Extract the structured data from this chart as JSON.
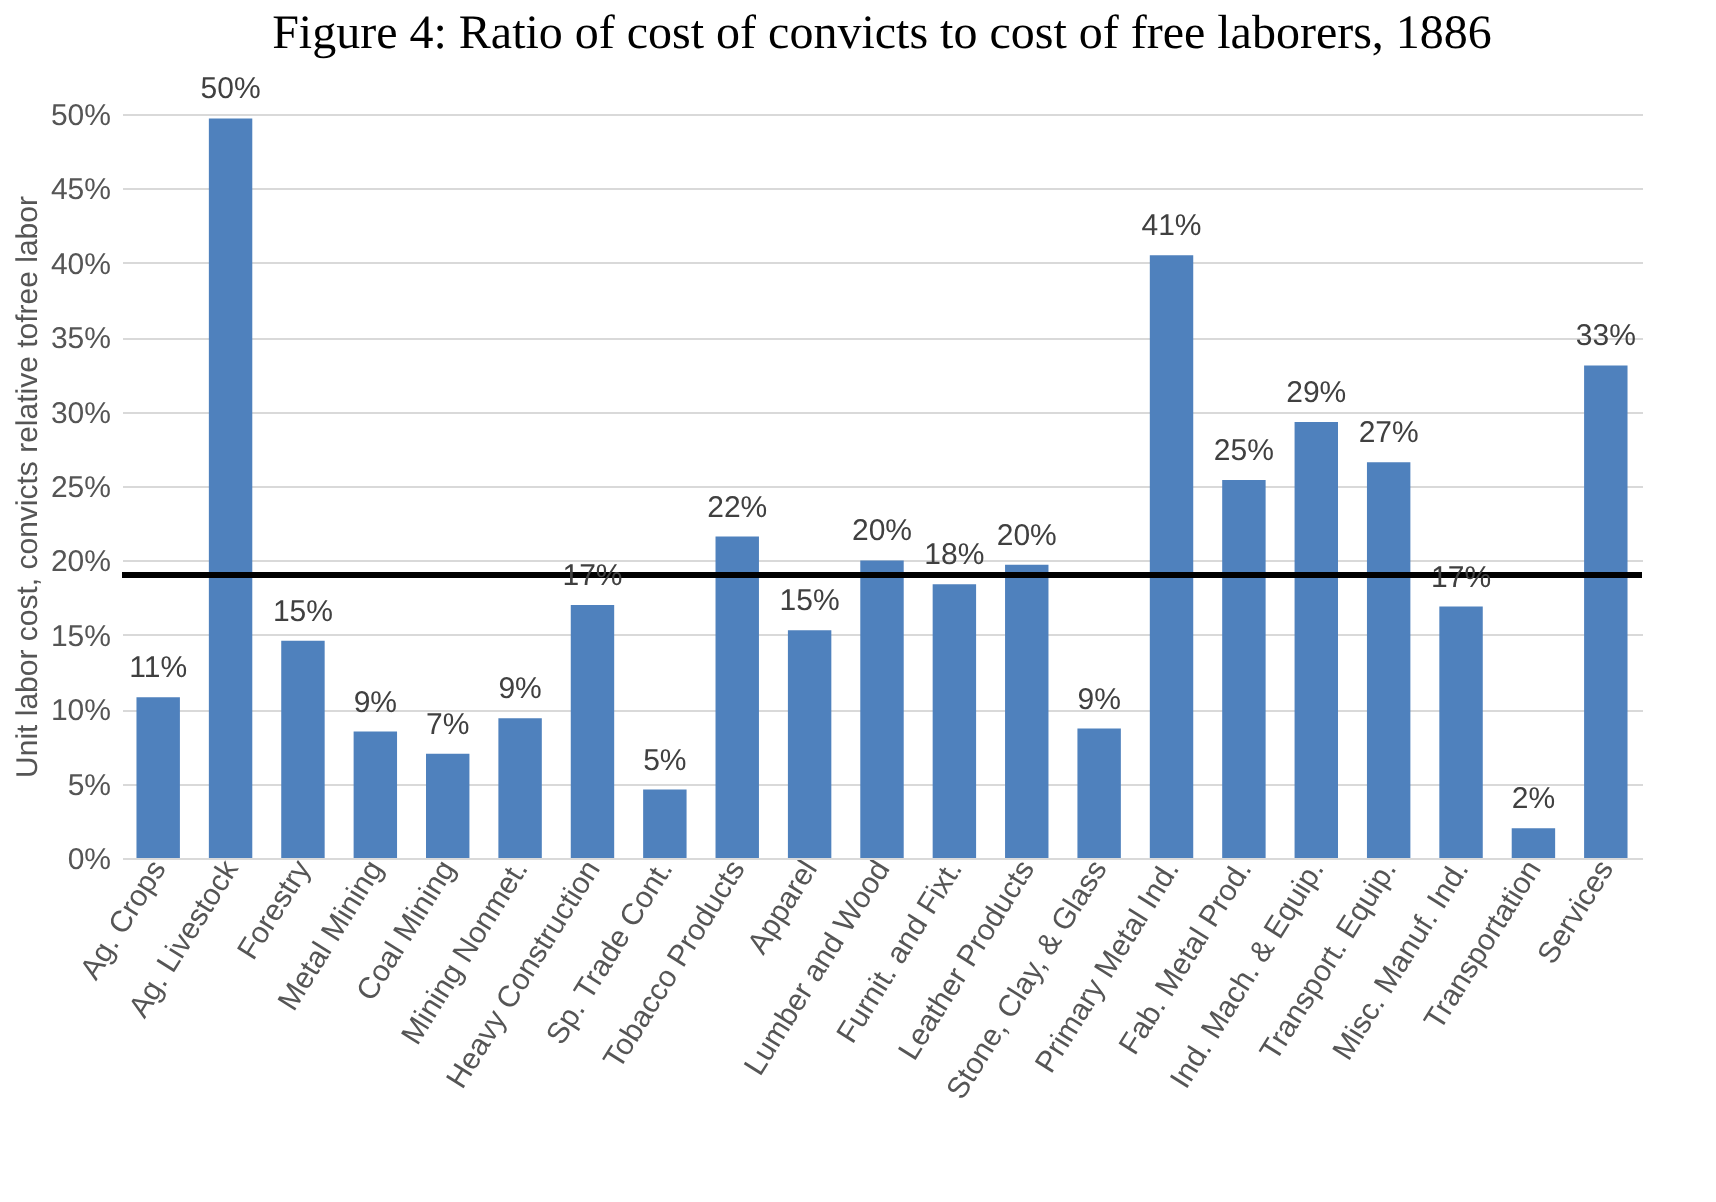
{
  "chart_data": {
    "type": "bar",
    "title": "Figure 4: Ratio of cost of convicts to cost of free laborers, 1886",
    "ylabel": "Unit labor cost, convicts relative tofree labor",
    "categories": [
      "Ag. Crops",
      "Ag. Livestock",
      "Forestry",
      "Metal Mining",
      "Coal Mining",
      "Mining Nonmet.",
      "Heavy Construction",
      "Sp. Trade Cont.",
      "Tobacco Products",
      "Apparel",
      "Lumber and Wood",
      "Furnit. and Fixt.",
      "Leather Products",
      "Stone, Clay, & Glass",
      "Primary Metal Ind.",
      "Fab. Metal Prod.",
      "Ind. Mach. & Equip.",
      "Transport. Equip.",
      "Misc. Manuf. Ind.",
      "Transportation",
      "Services"
    ],
    "values": [
      10.8,
      49.7,
      14.6,
      8.5,
      7.0,
      9.4,
      17.0,
      4.6,
      21.6,
      15.3,
      20.0,
      18.4,
      19.7,
      8.7,
      40.5,
      25.4,
      29.3,
      26.6,
      16.9,
      2.0,
      33.1
    ],
    "value_labels": [
      "11%",
      "50%",
      "15%",
      "9%",
      "7%",
      "9%",
      "17%",
      "5%",
      "22%",
      "15%",
      "20%",
      "18%",
      "20%",
      "9%",
      "41%",
      "25%",
      "29%",
      "27%",
      "17%",
      "2%",
      "33%"
    ],
    "color": "#4f81bd",
    "ylim": [
      0,
      50
    ],
    "yticks": [
      {
        "value": 0,
        "label": "0%"
      },
      {
        "value": 5,
        "label": "5%"
      },
      {
        "value": 10,
        "label": "10%"
      },
      {
        "value": 15,
        "label": "15%"
      },
      {
        "value": 20,
        "label": "20%"
      },
      {
        "value": 25,
        "label": "25%"
      },
      {
        "value": 30,
        "label": "30%"
      },
      {
        "value": 35,
        "label": "35%"
      },
      {
        "value": 40,
        "label": "40%"
      },
      {
        "value": 45,
        "label": "45%"
      },
      {
        "value": 50,
        "label": "50%"
      }
    ],
    "grid": "y",
    "ref_lines": [
      {
        "axis": "y",
        "value": 19,
        "color": "#000000"
      }
    ]
  }
}
